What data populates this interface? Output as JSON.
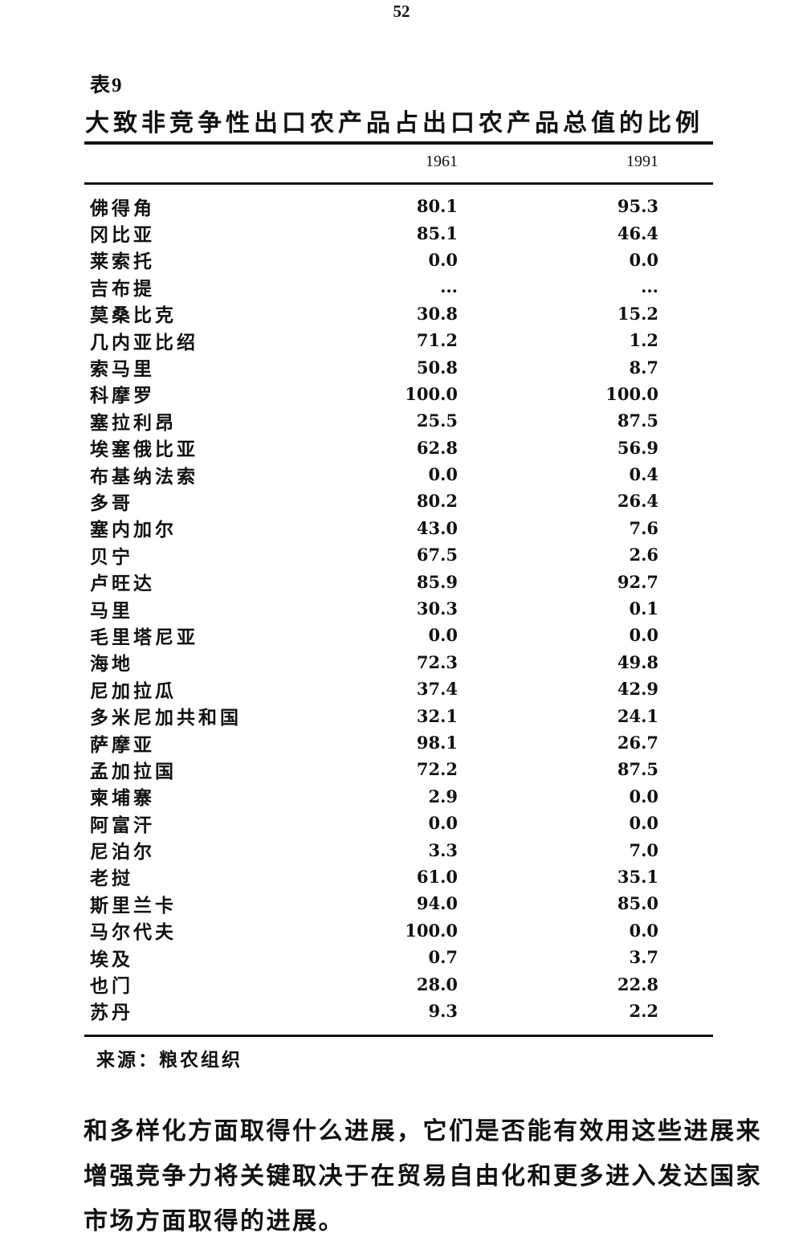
{
  "page": {
    "number": "52"
  },
  "table": {
    "label": "表9",
    "title": "大致非竞争性出口农产品占出口农产品总值的比例",
    "columns": [
      "1961",
      "1991"
    ],
    "rows": [
      {
        "name": "佛得角",
        "v1961": "80.1",
        "v1991": "95.3"
      },
      {
        "name": "冈比亚",
        "v1961": "85.1",
        "v1991": "46.4"
      },
      {
        "name": "莱索托",
        "v1961": "0.0",
        "v1991": "0.0"
      },
      {
        "name": "吉布提",
        "v1961": "...",
        "v1991": "..."
      },
      {
        "name": "莫桑比克",
        "v1961": "30.8",
        "v1991": "15.2"
      },
      {
        "name": "几内亚比绍",
        "v1961": "71.2",
        "v1991": "1.2"
      },
      {
        "name": "索马里",
        "v1961": "50.8",
        "v1991": "8.7"
      },
      {
        "name": "科摩罗",
        "v1961": "100.0",
        "v1991": "100.0"
      },
      {
        "name": "塞拉利昂",
        "v1961": "25.5",
        "v1991": "87.5"
      },
      {
        "name": "埃塞俄比亚",
        "v1961": "62.8",
        "v1991": "56.9"
      },
      {
        "name": "布基纳法索",
        "v1961": "0.0",
        "v1991": "0.4"
      },
      {
        "name": "多哥",
        "v1961": "80.2",
        "v1991": "26.4"
      },
      {
        "name": "塞内加尔",
        "v1961": "43.0",
        "v1991": "7.6"
      },
      {
        "name": "贝宁",
        "v1961": "67.5",
        "v1991": "2.6"
      },
      {
        "name": "卢旺达",
        "v1961": "85.9",
        "v1991": "92.7"
      },
      {
        "name": "马里",
        "v1961": "30.3",
        "v1991": "0.1"
      },
      {
        "name": "毛里塔尼亚",
        "v1961": "0.0",
        "v1991": "0.0"
      },
      {
        "name": "海地",
        "v1961": "72.3",
        "v1991": "49.8"
      },
      {
        "name": "尼加拉瓜",
        "v1961": "37.4",
        "v1991": "42.9"
      },
      {
        "name": "多米尼加共和国",
        "v1961": "32.1",
        "v1991": "24.1"
      },
      {
        "name": "萨摩亚",
        "v1961": "98.1",
        "v1991": "26.7"
      },
      {
        "name": "孟加拉国",
        "v1961": "72.2",
        "v1991": "87.5"
      },
      {
        "name": "柬埔寨",
        "v1961": "2.9",
        "v1991": "0.0"
      },
      {
        "name": "阿富汗",
        "v1961": "0.0",
        "v1991": "0.0"
      },
      {
        "name": "尼泊尔",
        "v1961": "3.3",
        "v1991": "7.0"
      },
      {
        "name": "老挝",
        "v1961": "61.0",
        "v1991": "35.1"
      },
      {
        "name": "斯里兰卡",
        "v1961": "94.0",
        "v1991": "85.0"
      },
      {
        "name": "马尔代夫",
        "v1961": "100.0",
        "v1991": "0.0"
      },
      {
        "name": "埃及",
        "v1961": "0.7",
        "v1991": "3.7"
      },
      {
        "name": "也门",
        "v1961": "28.0",
        "v1991": "22.8"
      },
      {
        "name": "苏丹",
        "v1961": "9.3",
        "v1991": "2.2"
      }
    ],
    "source": "来源：粮农组织"
  },
  "paragraph": {
    "lines": [
      "和多样化方面取得什么进展，它们是否能有效用这些进展来",
      "增强竞争力将关键取决于在贸易自由化和更多进入发达国家",
      "市场方面取得的进展。"
    ]
  }
}
